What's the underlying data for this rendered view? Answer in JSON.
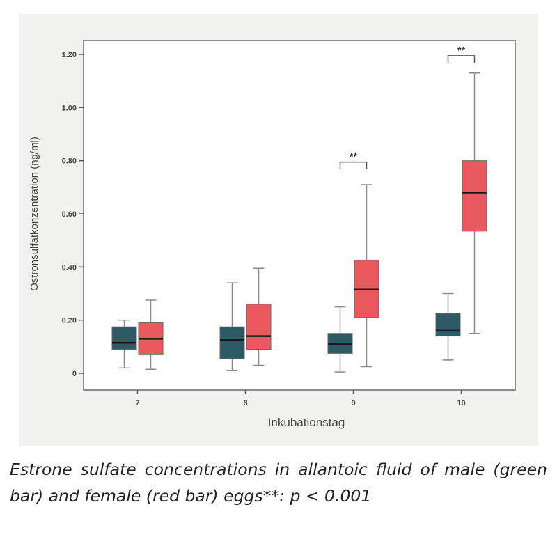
{
  "chart_data": {
    "type": "box",
    "xlabel": "Inkubationstag",
    "ylabel": "Östronsulfatkonzentration (ng/ml)",
    "ylim": [
      0,
      1.2
    ],
    "yticks": [
      "0",
      "0.20",
      "0.40",
      "0.60",
      "0.80",
      "1.00",
      "1.20"
    ],
    "categories": [
      "7",
      "8",
      "9",
      "10"
    ],
    "grid": false,
    "legend": "none",
    "series": [
      {
        "color": "#2e5a66",
        "boxes": [
          {
            "min": 0.02,
            "q1": 0.09,
            "median": 0.115,
            "q3": 0.175,
            "max": 0.2
          },
          {
            "min": 0.01,
            "q1": 0.055,
            "median": 0.125,
            "q3": 0.175,
            "max": 0.34
          },
          {
            "min": 0.005,
            "q1": 0.075,
            "median": 0.11,
            "q3": 0.15,
            "max": 0.25
          },
          {
            "min": 0.05,
            "q1": 0.14,
            "median": 0.16,
            "q3": 0.225,
            "max": 0.3
          }
        ]
      },
      {
        "color": "#e9595e",
        "boxes": [
          {
            "min": 0.015,
            "q1": 0.07,
            "median": 0.13,
            "q3": 0.19,
            "max": 0.275
          },
          {
            "min": 0.03,
            "q1": 0.09,
            "median": 0.14,
            "q3": 0.26,
            "max": 0.395
          },
          {
            "min": 0.025,
            "q1": 0.21,
            "median": 0.315,
            "q3": 0.425,
            "max": 0.71
          },
          {
            "min": 0.15,
            "q1": 0.535,
            "median": 0.68,
            "q3": 0.8,
            "max": 1.13
          }
        ]
      }
    ],
    "annotations": [
      {
        "category": "9",
        "text": "**",
        "y": 0.795
      },
      {
        "category": "10",
        "text": "**",
        "y": 1.195
      }
    ]
  },
  "caption": "Estrone sulfate concentrations in allantoic fluid of male (green bar) and female (red bar) eggs**: p < 0.001"
}
